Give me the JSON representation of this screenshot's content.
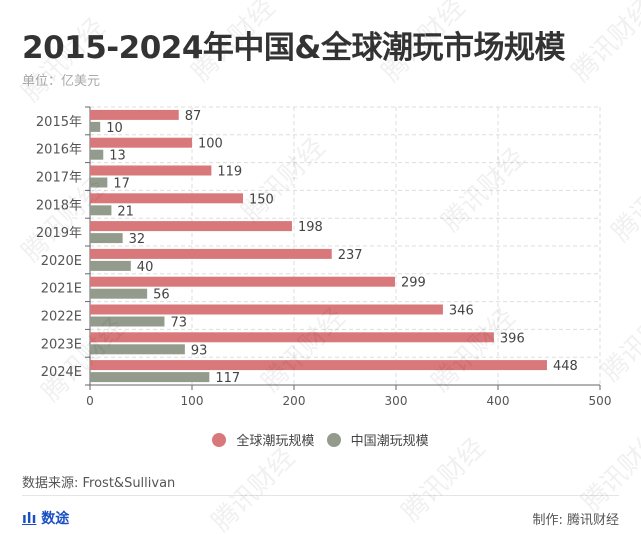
{
  "header": {
    "title": "2015-2024年中国&全球潮玩市场规模",
    "unit": "单位：亿美元"
  },
  "footer": {
    "source": "数据来源: Frost&Sullivan",
    "brand": "数途",
    "brand_icon": "bar-chart-icon",
    "credit": "制作: 腾讯财经",
    "watermark": "腾讯财经"
  },
  "colors": {
    "global": "#d9787a",
    "china": "#939c8c"
  },
  "chart_data": {
    "type": "bar",
    "orientation": "horizontal",
    "title": "2015-2024年中国&全球潮玩市场规模",
    "ylabel": "单位：亿美元",
    "categories": [
      "2015年",
      "2016年",
      "2017年",
      "2018年",
      "2019年",
      "2020E",
      "2021E",
      "2022E",
      "2023E",
      "2024E"
    ],
    "series": [
      {
        "name": "全球潮玩规模",
        "values": [
          87,
          100,
          119,
          150,
          198,
          237,
          299,
          346,
          396,
          448
        ]
      },
      {
        "name": "中国潮玩规模",
        "values": [
          10,
          13,
          17,
          21,
          32,
          40,
          56,
          73,
          93,
          117
        ]
      }
    ],
    "xlim": [
      0,
      500
    ],
    "xticks": [
      "0",
      "100",
      "200",
      "300",
      "400",
      "500"
    ],
    "grid": true,
    "legend": "bottom"
  }
}
